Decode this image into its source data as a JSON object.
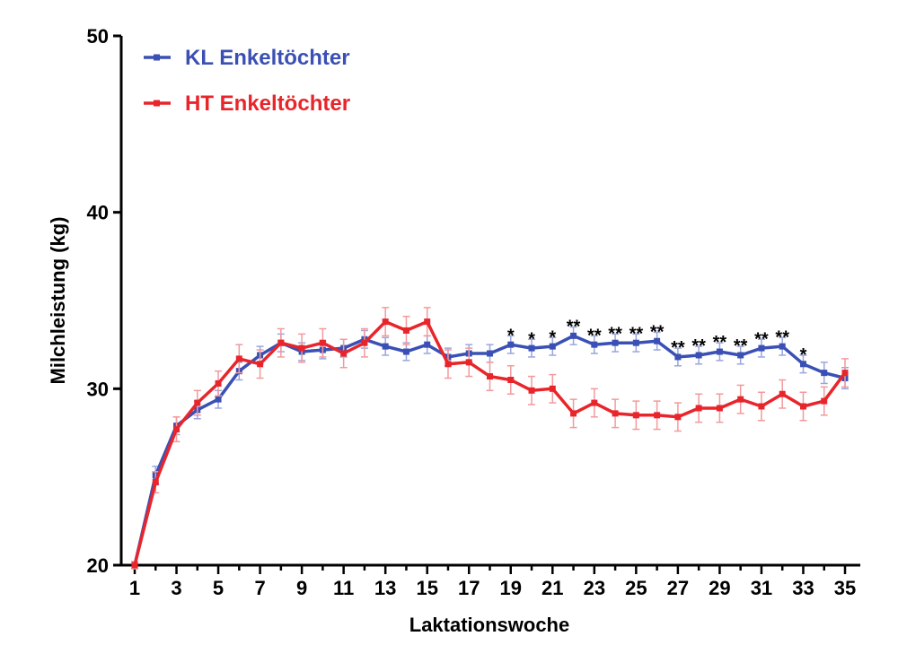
{
  "chart_data": {
    "type": "line",
    "title": "",
    "xlabel": "Laktationswoche",
    "ylabel": "Milchleistung (kg)",
    "xlim": [
      1,
      35
    ],
    "ylim": [
      20,
      50
    ],
    "yticks": [
      20,
      30,
      40,
      50
    ],
    "xticks": [
      1,
      3,
      5,
      7,
      9,
      11,
      13,
      15,
      17,
      19,
      21,
      23,
      25,
      27,
      29,
      31,
      33,
      35
    ],
    "grid": false,
    "legend_position": "top-left",
    "x": [
      1,
      2,
      3,
      4,
      5,
      6,
      7,
      8,
      9,
      10,
      11,
      12,
      13,
      14,
      15,
      16,
      17,
      18,
      19,
      20,
      21,
      22,
      23,
      24,
      25,
      26,
      27,
      28,
      29,
      30,
      31,
      32,
      33,
      34,
      35
    ],
    "series": [
      {
        "name": "KL Enkeltöchter",
        "color": "#3a50b4",
        "values": [
          20.0,
          25.1,
          27.9,
          28.8,
          29.4,
          31.0,
          31.9,
          32.6,
          32.1,
          32.2,
          32.3,
          32.8,
          32.4,
          32.1,
          32.5,
          31.8,
          32.0,
          32.0,
          32.5,
          32.3,
          32.4,
          33.0,
          32.5,
          32.6,
          32.6,
          32.7,
          31.8,
          31.9,
          32.1,
          31.9,
          32.3,
          32.4,
          31.4,
          30.9,
          30.6
        ],
        "errors": [
          0.2,
          0.5,
          0.5,
          0.5,
          0.5,
          0.5,
          0.5,
          0.5,
          0.5,
          0.5,
          0.5,
          0.5,
          0.5,
          0.5,
          0.5,
          0.5,
          0.5,
          0.5,
          0.5,
          0.5,
          0.5,
          0.5,
          0.5,
          0.5,
          0.5,
          0.5,
          0.5,
          0.5,
          0.5,
          0.5,
          0.5,
          0.5,
          0.5,
          0.6,
          0.6
        ]
      },
      {
        "name": "HT Enkeltöchter",
        "color": "#e8252b",
        "values": [
          20.0,
          24.7,
          27.7,
          29.2,
          30.3,
          31.7,
          31.4,
          32.6,
          32.3,
          32.6,
          32.0,
          32.6,
          33.8,
          33.3,
          33.8,
          31.4,
          31.5,
          30.7,
          30.5,
          29.9,
          30.0,
          28.6,
          29.2,
          28.6,
          28.5,
          28.5,
          28.4,
          28.9,
          28.9,
          29.4,
          29.0,
          29.7,
          29.0,
          29.3,
          30.9
        ],
        "errors": [
          0.2,
          0.6,
          0.7,
          0.7,
          0.7,
          0.8,
          0.8,
          0.8,
          0.8,
          0.8,
          0.8,
          0.8,
          0.8,
          0.8,
          0.8,
          0.8,
          0.8,
          0.8,
          0.8,
          0.8,
          0.8,
          0.8,
          0.8,
          0.8,
          0.8,
          0.8,
          0.8,
          0.8,
          0.8,
          0.8,
          0.8,
          0.8,
          0.8,
          0.8,
          0.8
        ]
      }
    ],
    "annotations": [
      {
        "x": 19,
        "text": "*"
      },
      {
        "x": 20,
        "text": "*"
      },
      {
        "x": 21,
        "text": "*"
      },
      {
        "x": 22,
        "text": "**"
      },
      {
        "x": 23,
        "text": "**"
      },
      {
        "x": 24,
        "text": "**"
      },
      {
        "x": 25,
        "text": "**"
      },
      {
        "x": 26,
        "text": "**"
      },
      {
        "x": 27,
        "text": "**"
      },
      {
        "x": 28,
        "text": "**"
      },
      {
        "x": 29,
        "text": "**"
      },
      {
        "x": 30,
        "text": "**"
      },
      {
        "x": 31,
        "text": "**"
      },
      {
        "x": 32,
        "text": "**"
      },
      {
        "x": 33,
        "text": "*"
      }
    ]
  }
}
